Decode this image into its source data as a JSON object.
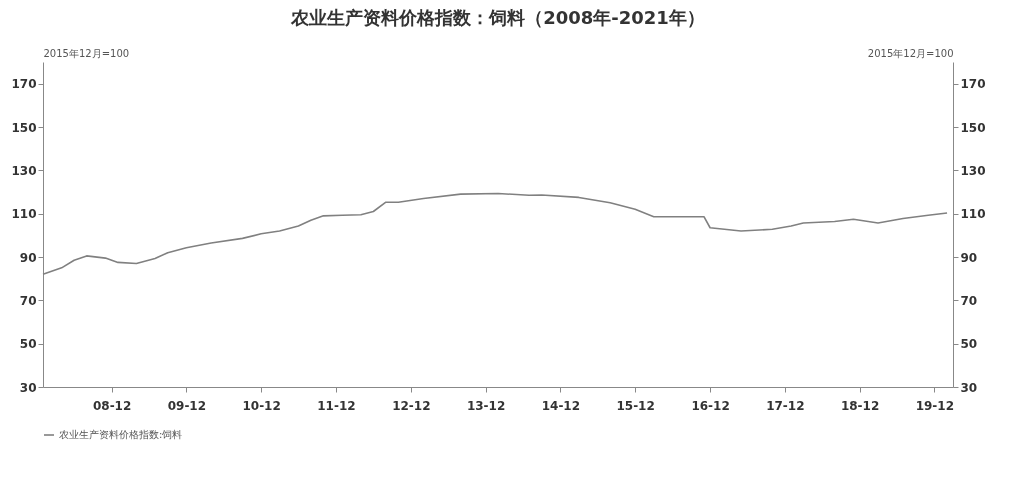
{
  "chart_data": {
    "type": "line",
    "title": "农业生产资料价格指数：饲料（2008年-2021年）",
    "ylabel": "2015年12月=100",
    "y2label": "2015年12月=100",
    "x": [
      "2008-01",
      "2008-04",
      "2008-06",
      "2008-08",
      "2008-11",
      "2009-01",
      "2009-04",
      "2009-07",
      "2009-09",
      "2009-12",
      "2010-04",
      "2010-09",
      "2010-12",
      "2011-03",
      "2011-06",
      "2011-08",
      "2011-10",
      "2012-01",
      "2012-04",
      "2012-06",
      "2012-08",
      "2012-10",
      "2013-02",
      "2013-08",
      "2014-02",
      "2014-07",
      "2014-09",
      "2015-03",
      "2015-08",
      "2015-12",
      "2016-03",
      "2016-06",
      "2016-11",
      "2016-12",
      "2017-05",
      "2017-10",
      "2018-01",
      "2018-03",
      "2018-08",
      "2018-11",
      "2019-03",
      "2019-07",
      "2019-11",
      "2020-02"
    ],
    "series": [
      {
        "name": "农业生产资料价格指数:饲料",
        "color": "#808080",
        "values": [
          82,
          85,
          88.5,
          90.5,
          89.5,
          87.5,
          87,
          89.3,
          92,
          94.3,
          96.5,
          98.6,
          100.7,
          102,
          104.3,
          107,
          109,
          109.3,
          109.5,
          111,
          115.3,
          115.3,
          117,
          119,
          119.3,
          118.5,
          118.6,
          117.5,
          115,
          112,
          108.6,
          108.6,
          108.6,
          103.5,
          102,
          102.8,
          104.3,
          105.7,
          106.4,
          107.4,
          105.7,
          107.8,
          109.3,
          110.3
        ]
      }
    ],
    "xlim": [
      "2008-01",
      "2020-03"
    ],
    "xticks": [
      {
        "value": "2008-12",
        "label": "08-12"
      },
      {
        "value": "2009-12",
        "label": "09-12"
      },
      {
        "value": "2010-12",
        "label": "10-12"
      },
      {
        "value": "2011-12",
        "label": "11-12"
      },
      {
        "value": "2012-12",
        "label": "12-12"
      },
      {
        "value": "2013-12",
        "label": "13-12"
      },
      {
        "value": "2014-12",
        "label": "14-12"
      },
      {
        "value": "2015-12",
        "label": "15-12"
      },
      {
        "value": "2016-12",
        "label": "16-12"
      },
      {
        "value": "2017-12",
        "label": "17-12"
      },
      {
        "value": "2018-12",
        "label": "18-12"
      },
      {
        "value": "2019-12",
        "label": "19-12"
      }
    ],
    "ylim": [
      30,
      180
    ],
    "yticks": [
      30,
      50,
      70,
      90,
      110,
      130,
      150,
      170
    ],
    "y2lim": [
      30,
      180
    ],
    "y2ticks": [
      30,
      50,
      70,
      90,
      110,
      130,
      150,
      170
    ],
    "legend": "bottom"
  }
}
